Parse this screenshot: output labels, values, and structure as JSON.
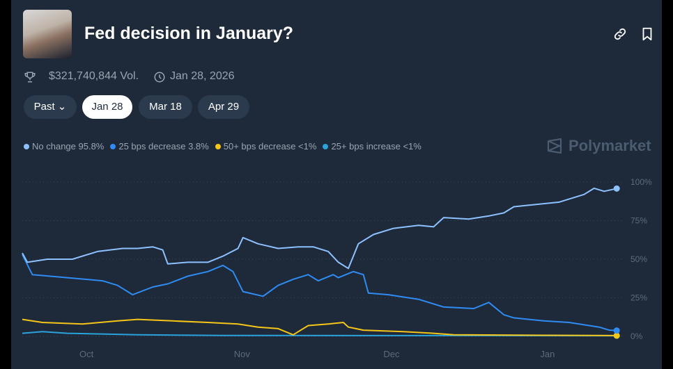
{
  "header": {
    "title": "Fed decision in January?",
    "volume": "$321,740,844 Vol.",
    "date": "Jan 28, 2026"
  },
  "icons": {
    "link": "link-icon",
    "bookmark": "bookmark-icon",
    "trophy": "trophy-icon",
    "clock": "clock-icon"
  },
  "tabs": [
    {
      "label": "Past"
    },
    {
      "label": "Jan 28"
    },
    {
      "label": "Mar 18"
    },
    {
      "label": "Apr 29"
    }
  ],
  "brand": "Polymarket",
  "chart_data": {
    "type": "line",
    "x_unit": "days since Sep 18",
    "ylim": [
      0,
      100
    ],
    "yticks": [
      "100%",
      "75%",
      "50%",
      "25%",
      "0%"
    ],
    "xticks": [
      {
        "label": "Oct",
        "day": 12.8
      },
      {
        "label": "Nov",
        "day": 43.8
      },
      {
        "label": "Dec",
        "day": 73.6
      },
      {
        "label": "Jan",
        "day": 104.7
      }
    ],
    "series": [
      {
        "name": "No change",
        "label": "No change 95.8%",
        "color": "#8ec1ff",
        "points": [
          [
            0,
            54
          ],
          [
            1,
            48
          ],
          [
            5,
            50
          ],
          [
            10,
            50
          ],
          [
            15,
            55
          ],
          [
            20,
            57
          ],
          [
            23,
            57
          ],
          [
            26,
            58
          ],
          [
            28,
            56
          ],
          [
            29,
            47
          ],
          [
            33,
            48
          ],
          [
            37,
            48
          ],
          [
            40,
            52
          ],
          [
            43,
            57
          ],
          [
            44,
            64
          ],
          [
            47,
            60
          ],
          [
            51,
            57
          ],
          [
            55,
            58
          ],
          [
            58,
            58
          ],
          [
            61,
            55
          ],
          [
            63,
            48
          ],
          [
            65,
            44
          ],
          [
            67,
            60
          ],
          [
            70,
            66
          ],
          [
            74,
            70
          ],
          [
            79,
            72
          ],
          [
            82,
            71
          ],
          [
            84,
            77
          ],
          [
            89,
            76
          ],
          [
            93,
            78
          ],
          [
            96,
            80
          ],
          [
            98,
            84
          ],
          [
            101,
            85
          ],
          [
            107,
            87
          ],
          [
            109,
            89
          ],
          [
            112,
            92
          ],
          [
            114,
            96
          ],
          [
            116,
            94
          ],
          [
            118.5,
            95.8
          ]
        ]
      },
      {
        "name": "25 bps decrease",
        "label": "25 bps decrease 3.8%",
        "color": "#2f8cf2",
        "points": [
          [
            0,
            53
          ],
          [
            2,
            40
          ],
          [
            9,
            38
          ],
          [
            16,
            36
          ],
          [
            19,
            33
          ],
          [
            22,
            27
          ],
          [
            26,
            32
          ],
          [
            29,
            34
          ],
          [
            33,
            39
          ],
          [
            37,
            42
          ],
          [
            40,
            46
          ],
          [
            42,
            42
          ],
          [
            44,
            29
          ],
          [
            48,
            26
          ],
          [
            51,
            33
          ],
          [
            54,
            37
          ],
          [
            57,
            40
          ],
          [
            59,
            36
          ],
          [
            62,
            40
          ],
          [
            63,
            38
          ],
          [
            66,
            42
          ],
          [
            68,
            40
          ],
          [
            69,
            28
          ],
          [
            73,
            27
          ],
          [
            79,
            24
          ],
          [
            84,
            19
          ],
          [
            90,
            18
          ],
          [
            93,
            22
          ],
          [
            96,
            14
          ],
          [
            98,
            12
          ],
          [
            104,
            10
          ],
          [
            109,
            9
          ],
          [
            115,
            6
          ],
          [
            117,
            4
          ],
          [
            118.5,
            3.8
          ]
        ]
      },
      {
        "name": "50+ bps decrease",
        "label": "50+ bps decrease <1%",
        "color": "#f5c518",
        "points": [
          [
            0,
            11
          ],
          [
            4,
            9
          ],
          [
            12,
            8
          ],
          [
            19,
            10
          ],
          [
            23,
            11
          ],
          [
            30,
            10
          ],
          [
            37,
            9
          ],
          [
            43,
            8
          ],
          [
            47,
            6
          ],
          [
            51,
            5
          ],
          [
            54,
            1
          ],
          [
            57,
            7
          ],
          [
            61,
            8
          ],
          [
            64,
            9
          ],
          [
            65,
            6
          ],
          [
            68,
            4
          ],
          [
            76,
            3
          ],
          [
            82,
            2
          ],
          [
            86,
            1
          ],
          [
            118.5,
            0.5
          ]
        ]
      },
      {
        "name": "25+ bps increase",
        "label": "25+ bps increase <1%",
        "color": "#2aa3dc",
        "points": [
          [
            0,
            2
          ],
          [
            4,
            3
          ],
          [
            9,
            2
          ],
          [
            23,
            1
          ],
          [
            40,
            0.6
          ],
          [
            118.5,
            0.4
          ]
        ]
      }
    ]
  }
}
